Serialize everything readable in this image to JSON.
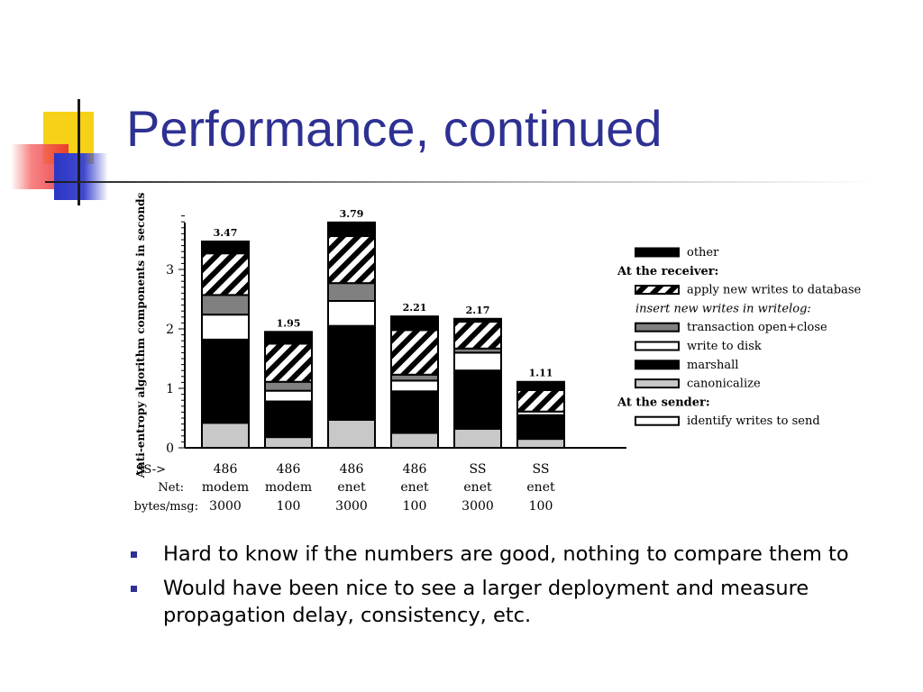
{
  "slide": {
    "title": "Performance, continued",
    "bullets": [
      "Hard to know if the numbers are good, nothing to compare them to",
      "Would have been nice to see a larger deployment and measure propagation delay, consistency, etc."
    ],
    "colors": {
      "title": "#2e3192",
      "bullet": "#2e3192"
    }
  },
  "chart_data": {
    "type": "bar",
    "stacked": true,
    "ylabel": "Anti-entropy algorithm components in seconds",
    "ylim": [
      0,
      3.9
    ],
    "yticks": [
      0,
      1,
      2,
      3
    ],
    "row_headers": [
      "SS->",
      "Net:",
      "bytes/msg:"
    ],
    "categories": [
      {
        "ss": "486",
        "net": "modem",
        "bytes": "3000"
      },
      {
        "ss": "486",
        "net": "modem",
        "bytes": "100"
      },
      {
        "ss": "486",
        "net": "enet",
        "bytes": "3000"
      },
      {
        "ss": "486",
        "net": "enet",
        "bytes": "100"
      },
      {
        "ss": "SS",
        "net": "enet",
        "bytes": "3000"
      },
      {
        "ss": "SS",
        "net": "enet",
        "bytes": "100"
      }
    ],
    "totals": [
      "3.47",
      "1.95",
      "3.79",
      "2.21",
      "2.17",
      "1.11"
    ],
    "series": [
      {
        "name": "identify writes to send",
        "style": "white",
        "values": [
          0.0,
          0.0,
          0.0,
          0.0,
          0.0,
          0.0
        ]
      },
      {
        "name": "canonicalize",
        "style": "light-gray",
        "values": [
          0.42,
          0.18,
          0.47,
          0.25,
          0.32,
          0.15
        ]
      },
      {
        "name": "marshall",
        "style": "black",
        "values": [
          1.4,
          0.6,
          1.58,
          0.7,
          0.98,
          0.4
        ]
      },
      {
        "name": "write to disk",
        "style": "white",
        "values": [
          0.42,
          0.18,
          0.42,
          0.18,
          0.3,
          0.06
        ]
      },
      {
        "name": "transaction open+close",
        "style": "dark-gray",
        "values": [
          0.33,
          0.15,
          0.3,
          0.1,
          0.07,
          0.0
        ]
      },
      {
        "name": "apply new writes to database",
        "style": "hatched",
        "values": [
          0.7,
          0.64,
          0.79,
          0.75,
          0.45,
          0.36
        ]
      },
      {
        "name": "other",
        "style": "black",
        "values": [
          0.2,
          0.2,
          0.23,
          0.23,
          0.05,
          0.14
        ]
      }
    ],
    "legend": [
      {
        "kind": "item",
        "label": "other",
        "style": "black"
      },
      {
        "kind": "header",
        "label": "At the receiver:"
      },
      {
        "kind": "item",
        "label": "apply new writes to database",
        "style": "hatched"
      },
      {
        "kind": "subheader",
        "label": "insert new writes in writelog:"
      },
      {
        "kind": "item",
        "label": "transaction open+close",
        "style": "dark-gray"
      },
      {
        "kind": "item",
        "label": "write to disk",
        "style": "white"
      },
      {
        "kind": "item",
        "label": "marshall",
        "style": "black"
      },
      {
        "kind": "item",
        "label": "canonicalize",
        "style": "light-gray"
      },
      {
        "kind": "header",
        "label": "At the sender:"
      },
      {
        "kind": "item",
        "label": "identify writes to send",
        "style": "white"
      }
    ],
    "legend_placement": "right",
    "grid": false
  }
}
